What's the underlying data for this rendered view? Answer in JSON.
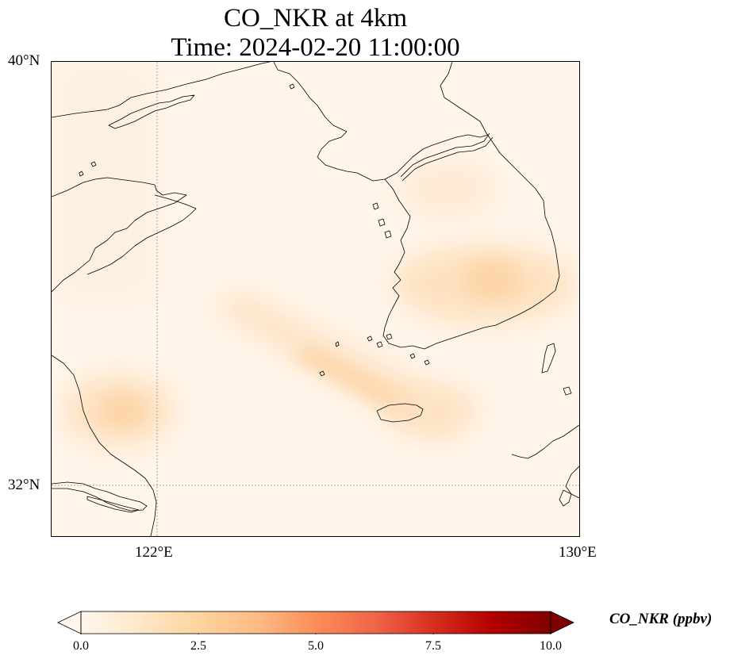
{
  "figure": {
    "title_line_1": "CO_NKR at 4km",
    "title_line_2": "Time: 2024-02-20 11:00:00"
  },
  "map": {
    "type": "geographic heatmap (pcolormesh over coastline)",
    "lon_range": [
      121,
      130
    ],
    "lat_range": [
      31,
      40
    ],
    "gridlines": {
      "style": "dotted",
      "color": "#8c8c8c",
      "longitudes": [
        122
      ],
      "latitudes": [
        32
      ]
    },
    "lon_tick_labels": [
      "122°E",
      "130°E"
    ],
    "lat_tick_labels": [
      "40°N",
      "32°N"
    ],
    "coastline_color": "#000000",
    "background_value_color": "#fff5e9"
  },
  "chart_data": {
    "type": "heatmap",
    "variable": "CO_NKR",
    "units": "ppbv",
    "colormap": "OrRd",
    "vmin": 0.0,
    "vmax": 10.0,
    "extend": "both",
    "colorbar_ticks": [
      0.0,
      2.5,
      5.0,
      7.5,
      10.0
    ],
    "colorbar_tick_labels": [
      "0.0",
      "2.5",
      "5.0",
      "7.5",
      "10.0"
    ],
    "colorbar_label": "CO_NKR (ppbv)",
    "colorbar_colors": [
      "#fff7ec",
      "#fee8c8",
      "#fdd49e",
      "#fdbb84",
      "#fc8d59",
      "#ef6548",
      "#d7301f",
      "#b30000",
      "#7f0000"
    ],
    "features": [
      {
        "name": "plume-yellow-sea-band",
        "lon": [
          123.0,
          128.0
        ],
        "lat": [
          33.0,
          35.5
        ],
        "peak_value": 1.5
      },
      {
        "name": "plume-southeast-korea",
        "lon": [
          127.5,
          130.0
        ],
        "lat": [
          34.8,
          37.0
        ],
        "peak_value": 1.2
      },
      {
        "name": "plume-central-korea",
        "lon": [
          126.5,
          128.5
        ],
        "lat": [
          36.5,
          38.5
        ],
        "peak_value": 0.7
      },
      {
        "name": "plume-east-china-coast",
        "lon": [
          121.0,
          122.5
        ],
        "lat": [
          32.8,
          34.3
        ],
        "peak_value": 1.3
      }
    ]
  }
}
